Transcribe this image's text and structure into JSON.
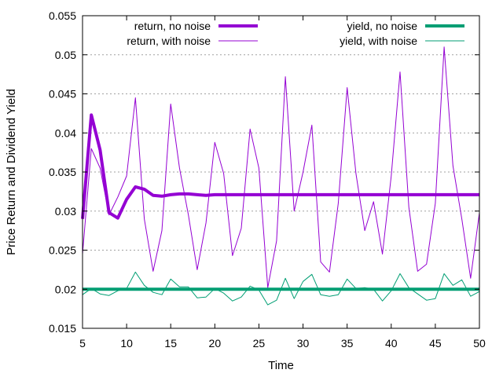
{
  "chart_data": {
    "type": "line",
    "title": "",
    "xlabel": "Time",
    "ylabel": "Price Return and Dividend Yield",
    "xlim": [
      5,
      50
    ],
    "ylim": [
      0.015,
      0.055
    ],
    "xticks": [
      5,
      10,
      15,
      20,
      25,
      30,
      35,
      40,
      45,
      50
    ],
    "xtick_labels": [
      "5",
      "10",
      "15",
      "20",
      "25",
      "30",
      "35",
      "40",
      "45",
      "50"
    ],
    "yticks": [
      0.015,
      0.02,
      0.025,
      0.03,
      0.035,
      0.04,
      0.045,
      0.05,
      0.055
    ],
    "ytick_labels": [
      "0.015",
      "0.02",
      "0.025",
      "0.03",
      "0.035",
      "0.04",
      "0.045",
      "0.05",
      "0.055"
    ],
    "grid": "horizontal dotted",
    "legend_placement": "top",
    "x": [
      5,
      6,
      7,
      8,
      9,
      10,
      11,
      12,
      13,
      14,
      15,
      16,
      17,
      18,
      19,
      20,
      21,
      22,
      23,
      24,
      25,
      26,
      27,
      28,
      29,
      30,
      31,
      32,
      33,
      34,
      35,
      36,
      37,
      38,
      39,
      40,
      41,
      42,
      43,
      44,
      45,
      46,
      47,
      48,
      49,
      50
    ],
    "series": [
      {
        "name": "return, no noise",
        "color": "#9400d3",
        "width": "thick",
        "values": [
          0.029,
          0.0423,
          0.0378,
          0.0298,
          0.0291,
          0.0315,
          0.0331,
          0.0328,
          0.032,
          0.0319,
          0.0321,
          0.0322,
          0.0322,
          0.0321,
          0.032,
          0.0321,
          0.0321,
          0.0321,
          0.0321,
          0.0321,
          0.0321,
          0.0321,
          0.0321,
          0.0321,
          0.0321,
          0.0321,
          0.0321,
          0.0321,
          0.0321,
          0.0321,
          0.0321,
          0.0321,
          0.0321,
          0.0321,
          0.0321,
          0.0321,
          0.0321,
          0.0321,
          0.0321,
          0.0321,
          0.0321,
          0.0321,
          0.0321,
          0.0321,
          0.0321,
          0.0321
        ]
      },
      {
        "name": "return, with noise",
        "color": "#9400d3",
        "width": "thin",
        "values": [
          0.0245,
          0.038,
          0.0355,
          0.0295,
          0.0318,
          0.0345,
          0.0445,
          0.029,
          0.0223,
          0.0275,
          0.0437,
          0.0355,
          0.0295,
          0.0225,
          0.0285,
          0.0388,
          0.0348,
          0.0243,
          0.0278,
          0.0405,
          0.0355,
          0.0202,
          0.0262,
          0.0472,
          0.03,
          0.035,
          0.041,
          0.0235,
          0.0222,
          0.031,
          0.0458,
          0.0348,
          0.0275,
          0.0312,
          0.0245,
          0.0345,
          0.0478,
          0.0305,
          0.0223,
          0.0232,
          0.031,
          0.051,
          0.0358,
          0.029,
          0.0214,
          0.0298
        ]
      },
      {
        "name": "yield, no noise",
        "color": "#009e73",
        "width": "thick",
        "values": [
          0.02,
          0.02,
          0.02,
          0.02,
          0.02,
          0.02,
          0.02,
          0.02,
          0.02,
          0.02,
          0.02,
          0.02,
          0.02,
          0.02,
          0.02,
          0.02,
          0.02,
          0.02,
          0.02,
          0.02,
          0.02,
          0.02,
          0.02,
          0.02,
          0.02,
          0.02,
          0.02,
          0.02,
          0.02,
          0.02,
          0.02,
          0.02,
          0.02,
          0.02,
          0.02,
          0.02,
          0.02,
          0.02,
          0.02,
          0.02,
          0.02,
          0.02,
          0.02,
          0.02,
          0.02,
          0.02
        ]
      },
      {
        "name": "yield, with noise",
        "color": "#009e73",
        "width": "thin",
        "values": [
          0.0193,
          0.0201,
          0.0194,
          0.0192,
          0.0198,
          0.0201,
          0.0222,
          0.0205,
          0.0196,
          0.0193,
          0.0213,
          0.0203,
          0.0203,
          0.0189,
          0.019,
          0.0201,
          0.0195,
          0.0185,
          0.019,
          0.0204,
          0.0199,
          0.018,
          0.0186,
          0.0214,
          0.0188,
          0.021,
          0.0219,
          0.0193,
          0.0191,
          0.0193,
          0.0213,
          0.0201,
          0.0202,
          0.02,
          0.0185,
          0.0198,
          0.022,
          0.0202,
          0.0194,
          0.0186,
          0.0188,
          0.022,
          0.0205,
          0.0212,
          0.0191,
          0.0197
        ]
      }
    ]
  }
}
